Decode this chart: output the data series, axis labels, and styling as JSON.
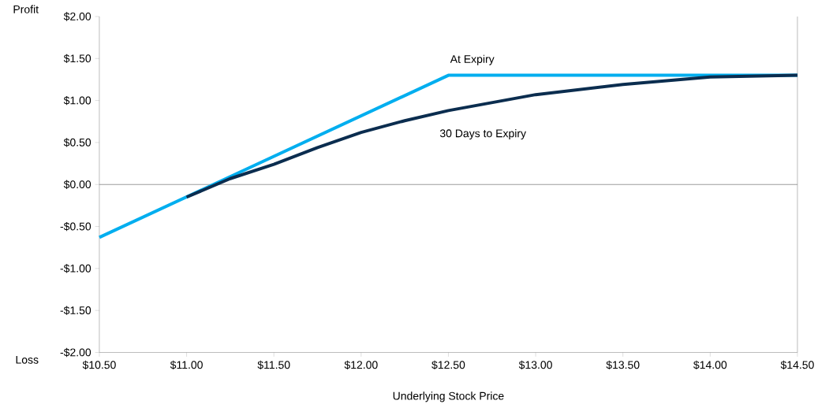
{
  "chart_data": {
    "type": "line",
    "xlabel": "Underlying Stock Price",
    "annotations": [
      "Profit",
      "Loss"
    ],
    "series": [
      {
        "name": "At Expiry",
        "color": "#00aeef",
        "x": [
          10.5,
          12.5,
          14.5
        ],
        "values": [
          -0.63,
          1.3,
          1.3
        ]
      },
      {
        "name": "30 Days to Expiry",
        "color": "#0b2d4f",
        "x": [
          11.0,
          11.25,
          11.5,
          11.75,
          12.0,
          12.25,
          12.5,
          13.0,
          13.5,
          14.0,
          14.5
        ],
        "values": [
          -0.15,
          0.07,
          0.24,
          0.44,
          0.62,
          0.76,
          0.88,
          1.07,
          1.19,
          1.28,
          1.3
        ]
      }
    ],
    "xlim": [
      10.5,
      14.5
    ],
    "ylim": [
      -2,
      2
    ],
    "xticks": [
      {
        "value": 10.5,
        "label": "$10.50"
      },
      {
        "value": 11,
        "label": "$11.00"
      },
      {
        "value": 11.5,
        "label": "$11.50"
      },
      {
        "value": 12,
        "label": "$12.00"
      },
      {
        "value": 12.5,
        "label": "$12.50"
      },
      {
        "value": 13,
        "label": "$13.00"
      },
      {
        "value": 13.5,
        "label": "$13.50"
      },
      {
        "value": 14,
        "label": "$14.00"
      },
      {
        "value": 14.5,
        "label": "$14.50"
      }
    ],
    "yticks": [
      {
        "value": -2,
        "label": "-$2.00"
      },
      {
        "value": -1.5,
        "label": "-$1.50"
      },
      {
        "value": -1,
        "label": "-$1.00"
      },
      {
        "value": -0.5,
        "label": "-$0.50"
      },
      {
        "value": 0,
        "label": "$0.00"
      },
      {
        "value": 0.5,
        "label": "$0.50"
      },
      {
        "value": 1,
        "label": "$1.00"
      },
      {
        "value": 1.5,
        "label": "$1.50"
      },
      {
        "value": 2,
        "label": "$2.00"
      }
    ],
    "ref_lines": [
      {
        "axis": "y",
        "value": 0,
        "color": "#808080"
      }
    ],
    "grid": false,
    "marker": "none",
    "line_style": "solid"
  }
}
